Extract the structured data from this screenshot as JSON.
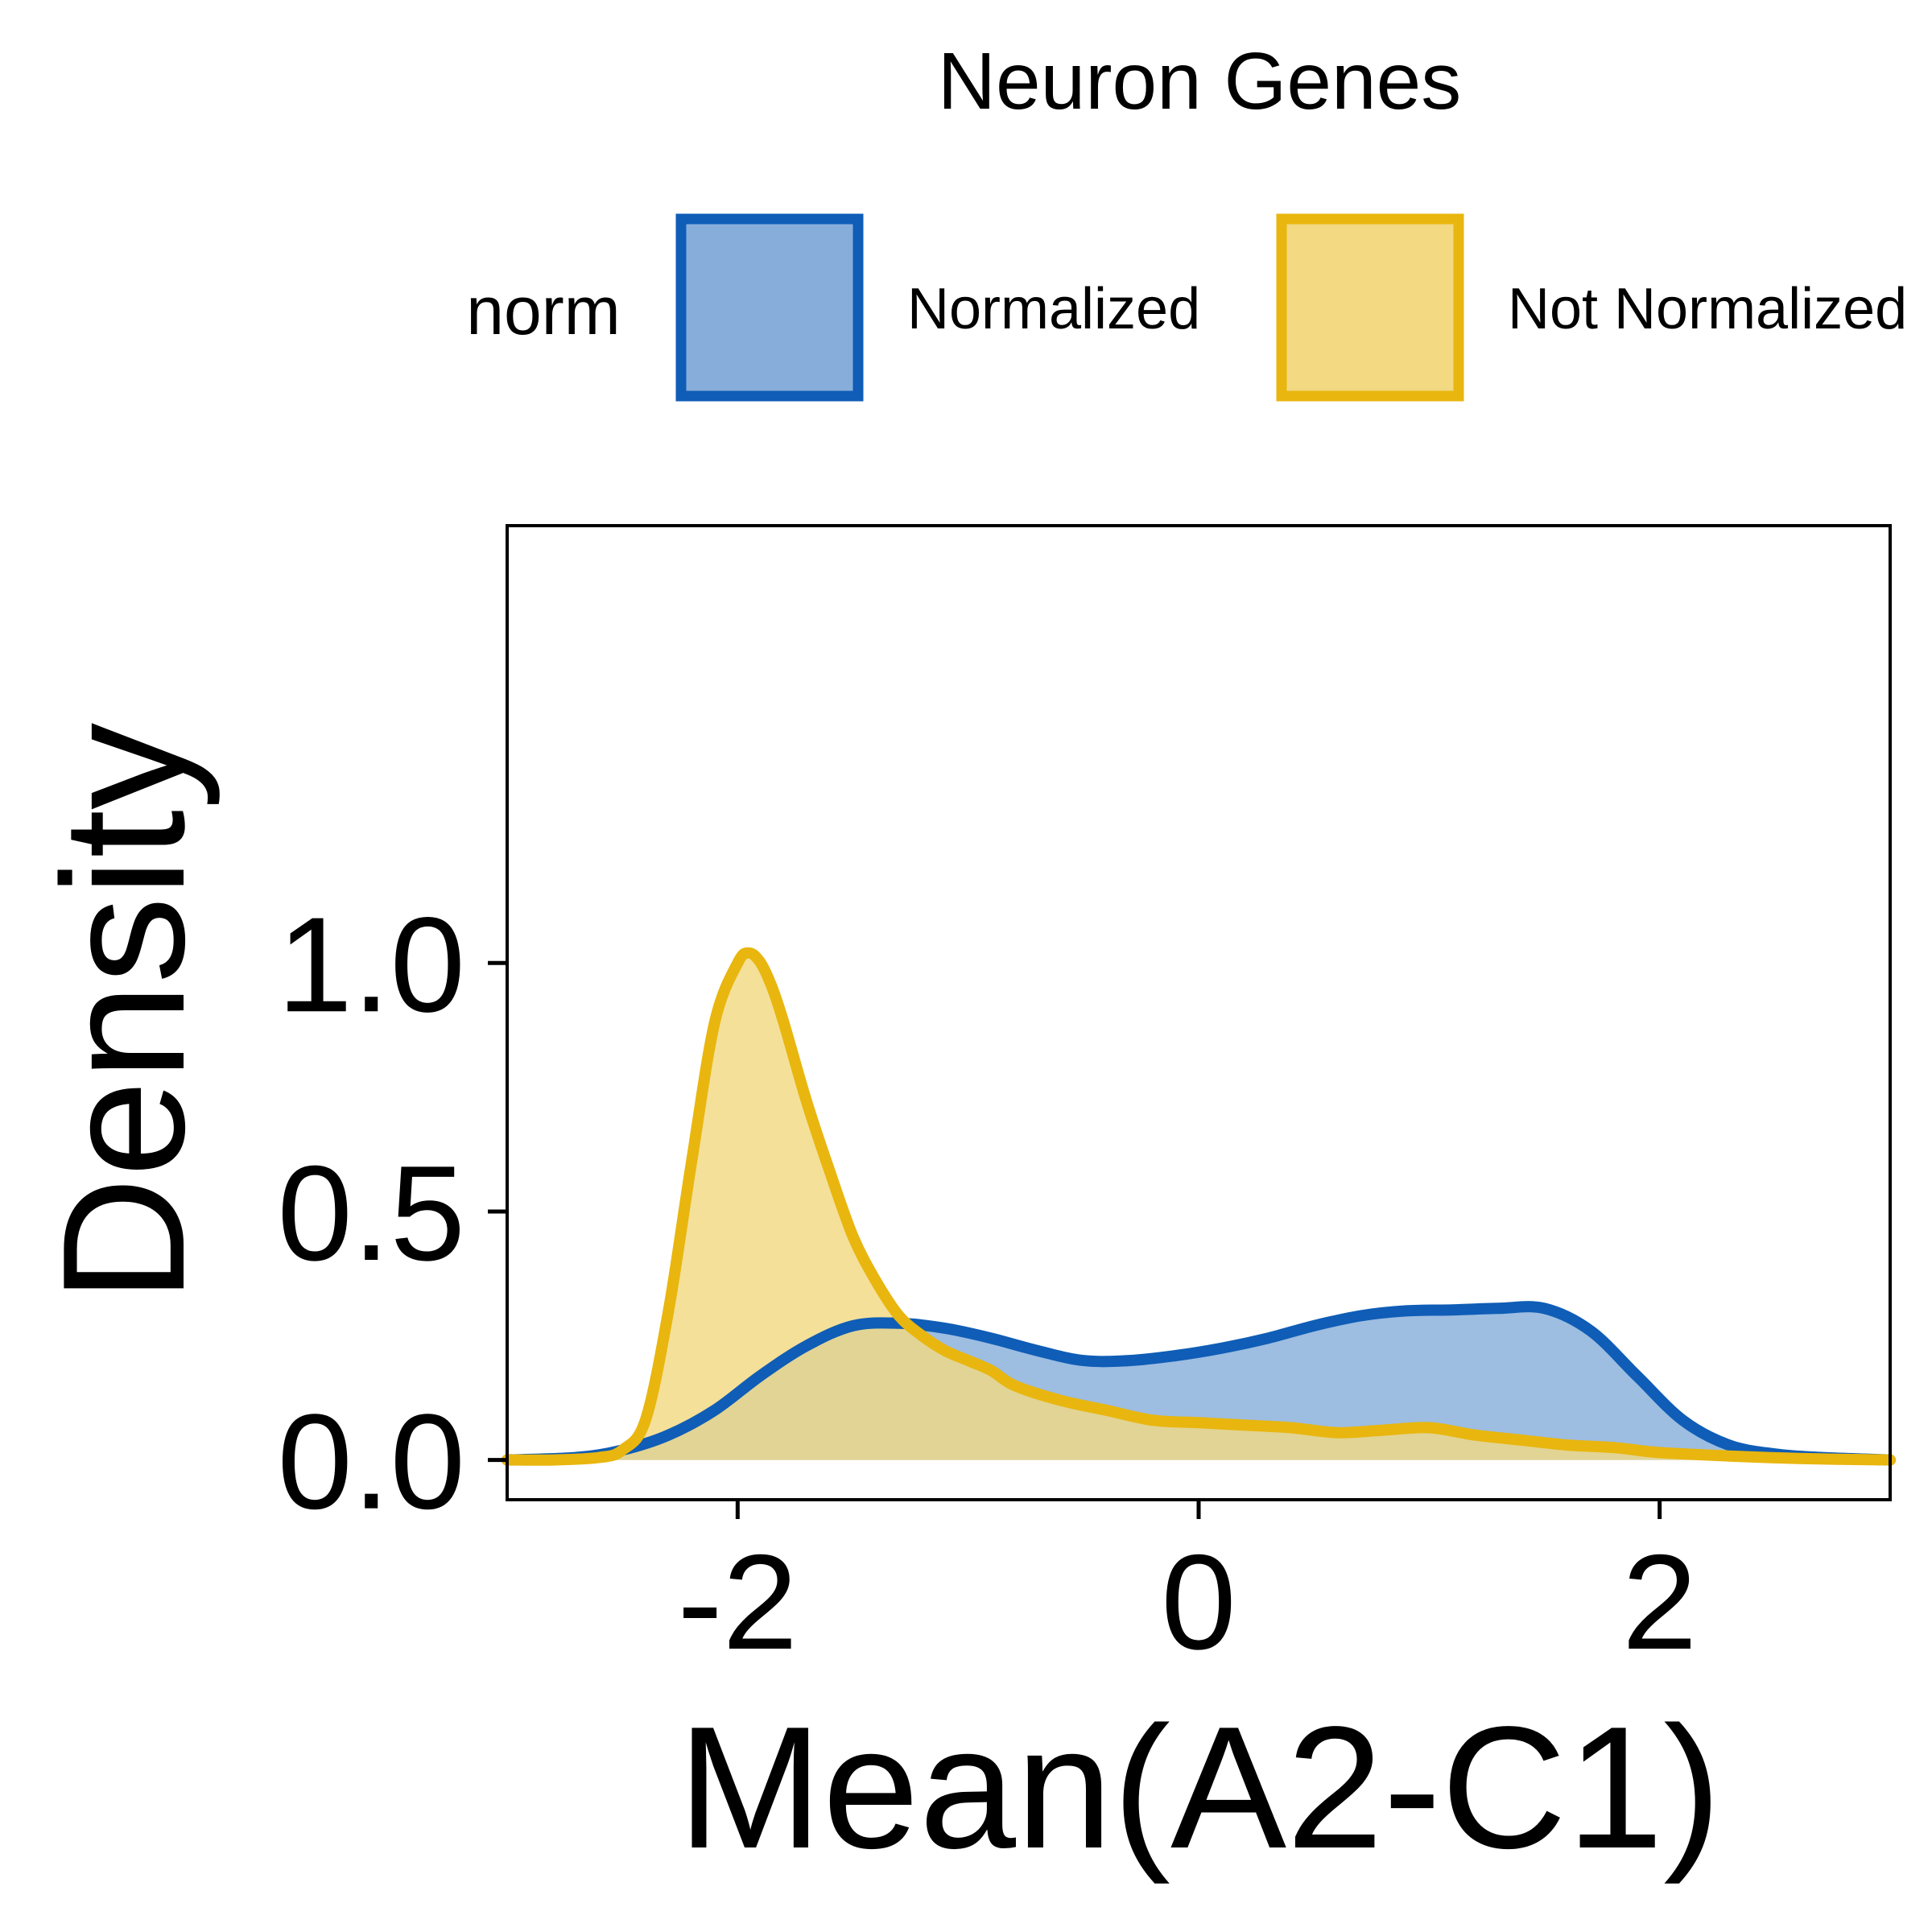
{
  "chart_data": {
    "type": "area",
    "title": "Neuron Genes",
    "xlabel": "Mean(A2-C1)",
    "ylabel": "Density",
    "xlim": [
      -3.0,
      3.0
    ],
    "ylim": [
      -0.08,
      1.88
    ],
    "x_ticks": [
      -2,
      0,
      2
    ],
    "x_tick_labels": [
      "-2",
      "0",
      "2"
    ],
    "y_ticks": [
      0.0,
      0.5,
      1.0
    ],
    "y_tick_labels": [
      "0.0",
      "0.5",
      "1.0"
    ],
    "grid": false,
    "legend": {
      "title": "norm",
      "position": "top",
      "entries": [
        "Normalized",
        "Not Normalized"
      ]
    },
    "series": [
      {
        "name": "Normalized",
        "line_color": "#0F5DB6",
        "fill_color": "#87AEDA",
        "x": [
          -3.0,
          -2.7,
          -2.5,
          -2.3,
          -2.1,
          -1.9,
          -1.7,
          -1.5,
          -1.3,
          -1.1,
          -0.9,
          -0.7,
          -0.5,
          -0.3,
          -0.1,
          0.1,
          0.3,
          0.5,
          0.7,
          0.9,
          1.1,
          1.3,
          1.5,
          1.7,
          1.9,
          2.1,
          2.3,
          2.5,
          2.7,
          3.0
        ],
        "y": [
          0.0,
          0.005,
          0.02,
          0.05,
          0.1,
          0.17,
          0.23,
          0.27,
          0.275,
          0.265,
          0.245,
          0.22,
          0.2,
          0.2,
          0.21,
          0.225,
          0.245,
          0.27,
          0.29,
          0.3,
          0.302,
          0.305,
          0.305,
          0.26,
          0.17,
          0.08,
          0.03,
          0.012,
          0.005,
          0.0
        ]
      },
      {
        "name": "Not Normalized",
        "line_color": "#E8B60E",
        "fill_color": "#F2D982",
        "x": [
          -3.0,
          -2.8,
          -2.6,
          -2.5,
          -2.4,
          -2.3,
          -2.2,
          -2.1,
          -2.0,
          -1.95,
          -1.9,
          -1.85,
          -1.8,
          -1.7,
          -1.6,
          -1.5,
          -1.4,
          -1.3,
          -1.2,
          -1.1,
          -1.0,
          -0.9,
          -0.8,
          -0.6,
          -0.4,
          -0.2,
          0.0,
          0.2,
          0.4,
          0.6,
          0.8,
          1.0,
          1.2,
          1.4,
          1.6,
          1.8,
          2.0,
          2.3,
          2.6,
          3.0
        ],
        "y": [
          0.0,
          0.0,
          0.005,
          0.02,
          0.08,
          0.3,
          0.6,
          0.88,
          1.0,
          1.02,
          1.0,
          0.95,
          0.88,
          0.72,
          0.58,
          0.45,
          0.36,
          0.29,
          0.25,
          0.22,
          0.2,
          0.18,
          0.15,
          0.12,
          0.1,
          0.08,
          0.075,
          0.07,
          0.065,
          0.055,
          0.06,
          0.065,
          0.05,
          0.04,
          0.03,
          0.025,
          0.015,
          0.008,
          0.003,
          0.0
        ]
      }
    ]
  }
}
